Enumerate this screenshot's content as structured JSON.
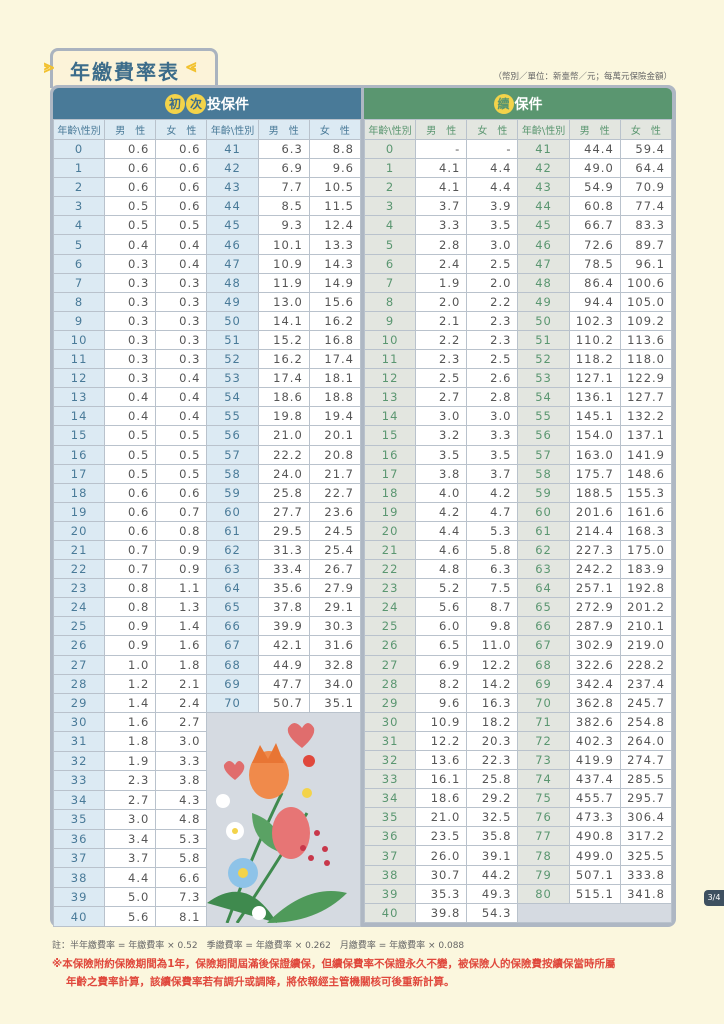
{
  "title": "年繳費率表",
  "unit_note": "（幣別／單位：新臺幣／元；每萬元保險金額）",
  "colors": {
    "initial": "#497a98",
    "initial_age_bg": "#dceaf3",
    "initial_age_text": "#497a98",
    "renewal": "#5a9670",
    "renewal_age_bg": "#e3e6e0",
    "renewal_age_text": "#5a9670",
    "warning": "#e0483c"
  },
  "headers": {
    "age_gender": "年齡\\性別",
    "male": "男　性",
    "female": "女　性"
  },
  "initial": {
    "badge1": "初",
    "badge2": "次",
    "label": "投保件",
    "rows": [
      [
        "0",
        "0.6",
        "0.6"
      ],
      [
        "1",
        "0.6",
        "0.6"
      ],
      [
        "2",
        "0.6",
        "0.6"
      ],
      [
        "3",
        "0.5",
        "0.6"
      ],
      [
        "4",
        "0.5",
        "0.5"
      ],
      [
        "5",
        "0.4",
        "0.4"
      ],
      [
        "6",
        "0.3",
        "0.4"
      ],
      [
        "7",
        "0.3",
        "0.3"
      ],
      [
        "8",
        "0.3",
        "0.3"
      ],
      [
        "9",
        "0.3",
        "0.3"
      ],
      [
        "10",
        "0.3",
        "0.3"
      ],
      [
        "11",
        "0.3",
        "0.3"
      ],
      [
        "12",
        "0.3",
        "0.4"
      ],
      [
        "13",
        "0.4",
        "0.4"
      ],
      [
        "14",
        "0.4",
        "0.4"
      ],
      [
        "15",
        "0.5",
        "0.5"
      ],
      [
        "16",
        "0.5",
        "0.5"
      ],
      [
        "17",
        "0.5",
        "0.5"
      ],
      [
        "18",
        "0.6",
        "0.6"
      ],
      [
        "19",
        "0.6",
        "0.7"
      ],
      [
        "20",
        "0.6",
        "0.8"
      ],
      [
        "21",
        "0.7",
        "0.9"
      ],
      [
        "22",
        "0.7",
        "0.9"
      ],
      [
        "23",
        "0.8",
        "1.1"
      ],
      [
        "24",
        "0.8",
        "1.3"
      ],
      [
        "25",
        "0.9",
        "1.4"
      ],
      [
        "26",
        "0.9",
        "1.6"
      ],
      [
        "27",
        "1.0",
        "1.8"
      ],
      [
        "28",
        "1.2",
        "2.1"
      ],
      [
        "29",
        "1.4",
        "2.4"
      ],
      [
        "30",
        "1.6",
        "2.7"
      ],
      [
        "31",
        "1.8",
        "3.0"
      ],
      [
        "32",
        "1.9",
        "3.3"
      ],
      [
        "33",
        "2.3",
        "3.8"
      ],
      [
        "34",
        "2.7",
        "4.3"
      ],
      [
        "35",
        "3.0",
        "4.8"
      ],
      [
        "36",
        "3.4",
        "5.3"
      ],
      [
        "37",
        "3.7",
        "5.8"
      ],
      [
        "38",
        "4.4",
        "6.6"
      ],
      [
        "39",
        "5.0",
        "7.3"
      ],
      [
        "40",
        "5.6",
        "8.1"
      ],
      [
        "41",
        "6.3",
        "8.8"
      ],
      [
        "42",
        "6.9",
        "9.6"
      ],
      [
        "43",
        "7.7",
        "10.5"
      ],
      [
        "44",
        "8.5",
        "11.5"
      ],
      [
        "45",
        "9.3",
        "12.4"
      ],
      [
        "46",
        "10.1",
        "13.3"
      ],
      [
        "47",
        "10.9",
        "14.3"
      ],
      [
        "48",
        "11.9",
        "14.9"
      ],
      [
        "49",
        "13.0",
        "15.6"
      ],
      [
        "50",
        "14.1",
        "16.2"
      ],
      [
        "51",
        "15.2",
        "16.8"
      ],
      [
        "52",
        "16.2",
        "17.4"
      ],
      [
        "53",
        "17.4",
        "18.1"
      ],
      [
        "54",
        "18.6",
        "18.8"
      ],
      [
        "55",
        "19.8",
        "19.4"
      ],
      [
        "56",
        "21.0",
        "20.1"
      ],
      [
        "57",
        "22.2",
        "20.8"
      ],
      [
        "58",
        "24.0",
        "21.7"
      ],
      [
        "59",
        "25.8",
        "22.7"
      ],
      [
        "60",
        "27.7",
        "23.6"
      ],
      [
        "61",
        "29.5",
        "24.5"
      ],
      [
        "62",
        "31.3",
        "25.4"
      ],
      [
        "63",
        "33.4",
        "26.7"
      ],
      [
        "64",
        "35.6",
        "27.9"
      ],
      [
        "65",
        "37.8",
        "29.1"
      ],
      [
        "66",
        "39.9",
        "30.3"
      ],
      [
        "67",
        "42.1",
        "31.6"
      ],
      [
        "68",
        "44.9",
        "32.8"
      ],
      [
        "69",
        "47.7",
        "34.0"
      ],
      [
        "70",
        "50.7",
        "35.1"
      ]
    ]
  },
  "renewal": {
    "badge1": "續",
    "label": "保件",
    "rows": [
      [
        "0",
        "-",
        "-"
      ],
      [
        "1",
        "4.1",
        "4.4"
      ],
      [
        "2",
        "4.1",
        "4.4"
      ],
      [
        "3",
        "3.7",
        "3.9"
      ],
      [
        "4",
        "3.3",
        "3.5"
      ],
      [
        "5",
        "2.8",
        "3.0"
      ],
      [
        "6",
        "2.4",
        "2.5"
      ],
      [
        "7",
        "1.9",
        "2.0"
      ],
      [
        "8",
        "2.0",
        "2.2"
      ],
      [
        "9",
        "2.1",
        "2.3"
      ],
      [
        "10",
        "2.2",
        "2.3"
      ],
      [
        "11",
        "2.3",
        "2.5"
      ],
      [
        "12",
        "2.5",
        "2.6"
      ],
      [
        "13",
        "2.7",
        "2.8"
      ],
      [
        "14",
        "3.0",
        "3.0"
      ],
      [
        "15",
        "3.2",
        "3.3"
      ],
      [
        "16",
        "3.5",
        "3.5"
      ],
      [
        "17",
        "3.8",
        "3.7"
      ],
      [
        "18",
        "4.0",
        "4.2"
      ],
      [
        "19",
        "4.2",
        "4.7"
      ],
      [
        "20",
        "4.4",
        "5.3"
      ],
      [
        "21",
        "4.6",
        "5.8"
      ],
      [
        "22",
        "4.8",
        "6.3"
      ],
      [
        "23",
        "5.2",
        "7.5"
      ],
      [
        "24",
        "5.6",
        "8.7"
      ],
      [
        "25",
        "6.0",
        "9.8"
      ],
      [
        "26",
        "6.5",
        "11.0"
      ],
      [
        "27",
        "6.9",
        "12.2"
      ],
      [
        "28",
        "8.2",
        "14.2"
      ],
      [
        "29",
        "9.6",
        "16.3"
      ],
      [
        "30",
        "10.9",
        "18.2"
      ],
      [
        "31",
        "12.2",
        "20.3"
      ],
      [
        "32",
        "13.6",
        "22.3"
      ],
      [
        "33",
        "16.1",
        "25.8"
      ],
      [
        "34",
        "18.6",
        "29.2"
      ],
      [
        "35",
        "21.0",
        "32.5"
      ],
      [
        "36",
        "23.5",
        "35.8"
      ],
      [
        "37",
        "26.0",
        "39.1"
      ],
      [
        "38",
        "30.7",
        "44.2"
      ],
      [
        "39",
        "35.3",
        "49.3"
      ],
      [
        "40",
        "39.8",
        "54.3"
      ],
      [
        "41",
        "44.4",
        "59.4"
      ],
      [
        "42",
        "49.0",
        "64.4"
      ],
      [
        "43",
        "54.9",
        "70.9"
      ],
      [
        "44",
        "60.8",
        "77.4"
      ],
      [
        "45",
        "66.7",
        "83.3"
      ],
      [
        "46",
        "72.6",
        "89.7"
      ],
      [
        "47",
        "78.5",
        "96.1"
      ],
      [
        "48",
        "86.4",
        "100.6"
      ],
      [
        "49",
        "94.4",
        "105.0"
      ],
      [
        "50",
        "102.3",
        "109.2"
      ],
      [
        "51",
        "110.2",
        "113.6"
      ],
      [
        "52",
        "118.2",
        "118.0"
      ],
      [
        "53",
        "127.1",
        "122.9"
      ],
      [
        "54",
        "136.1",
        "127.7"
      ],
      [
        "55",
        "145.1",
        "132.2"
      ],
      [
        "56",
        "154.0",
        "137.1"
      ],
      [
        "57",
        "163.0",
        "141.9"
      ],
      [
        "58",
        "175.7",
        "148.6"
      ],
      [
        "59",
        "188.5",
        "155.3"
      ],
      [
        "60",
        "201.6",
        "161.6"
      ],
      [
        "61",
        "214.4",
        "168.3"
      ],
      [
        "62",
        "227.3",
        "175.0"
      ],
      [
        "63",
        "242.2",
        "183.9"
      ],
      [
        "64",
        "257.1",
        "192.8"
      ],
      [
        "65",
        "272.9",
        "201.2"
      ],
      [
        "66",
        "287.9",
        "210.1"
      ],
      [
        "67",
        "302.9",
        "219.0"
      ],
      [
        "68",
        "322.6",
        "228.2"
      ],
      [
        "69",
        "342.4",
        "237.4"
      ],
      [
        "70",
        "362.8",
        "245.7"
      ],
      [
        "71",
        "382.6",
        "254.8"
      ],
      [
        "72",
        "402.3",
        "264.0"
      ],
      [
        "73",
        "419.9",
        "274.7"
      ],
      [
        "74",
        "437.4",
        "285.5"
      ],
      [
        "75",
        "455.7",
        "295.7"
      ],
      [
        "76",
        "473.3",
        "306.4"
      ],
      [
        "77",
        "490.8",
        "317.2"
      ],
      [
        "78",
        "499.0",
        "325.5"
      ],
      [
        "79",
        "507.1",
        "333.8"
      ],
      [
        "80",
        "515.1",
        "341.8"
      ]
    ]
  },
  "footer": {
    "note": "註：半年繳費率 = 年繳費率 × 0.52　季繳費率 = 年繳費率 × 0.262　月繳費率 = 年繳費率 × 0.088",
    "warning_line1": "※本保險附約保險期間為1年，保險期間屆滿後保證續保，但續保費率不保證永久不變，被保險人的保險費按續保當時所屬",
    "warning_line2": "年齡之費率計算，該續保費率若有調升或調降，將依報經主管機關核可後重新計算。"
  },
  "page_indicator": "3/4"
}
